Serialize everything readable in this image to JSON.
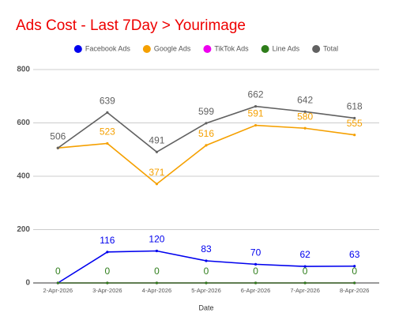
{
  "chart_data": {
    "type": "line",
    "title": "Ads Cost - Last 7Day > Yourimage",
    "x_label": "Date",
    "categories": [
      "2-Apr-2026",
      "3-Apr-2026",
      "4-Apr-2026",
      "5-Apr-2026",
      "6-Apr-2026",
      "7-Apr-2026",
      "8-Apr-2026"
    ],
    "series": [
      {
        "name": "Facebook Ads",
        "color": "#0000ee",
        "values": [
          0,
          116,
          120,
          83,
          70,
          62,
          63
        ],
        "value_labels": [
          null,
          "116",
          "120",
          "83",
          "70",
          "62",
          "63"
        ]
      },
      {
        "name": "Google Ads",
        "color": "#f5a000",
        "values": [
          506,
          523,
          371,
          516,
          591,
          580,
          555
        ],
        "value_labels": [
          null,
          "523",
          "371",
          "516",
          "591",
          "580",
          "555"
        ]
      },
      {
        "name": "TikTok Ads",
        "color": "#ee00ee",
        "values": [
          0,
          0,
          0,
          0,
          0,
          0,
          0
        ],
        "value_labels": [
          null,
          null,
          null,
          null,
          null,
          null,
          null
        ]
      },
      {
        "name": "Line Ads",
        "color": "#2e7d1a",
        "values": [
          0,
          0,
          0,
          0,
          0,
          0,
          0
        ],
        "value_labels": [
          "0",
          "0",
          "0",
          "0",
          "0",
          "0",
          "0"
        ]
      },
      {
        "name": "Total",
        "color": "#616161",
        "values": [
          506,
          639,
          491,
          599,
          662,
          642,
          618
        ],
        "value_labels": [
          "506",
          "639",
          "491",
          "599",
          "662",
          "642",
          "618"
        ]
      }
    ],
    "ylim": [
      0,
      800
    ],
    "yticks": [
      0,
      200,
      400,
      600,
      800
    ],
    "grid": true,
    "legend": "top"
  }
}
